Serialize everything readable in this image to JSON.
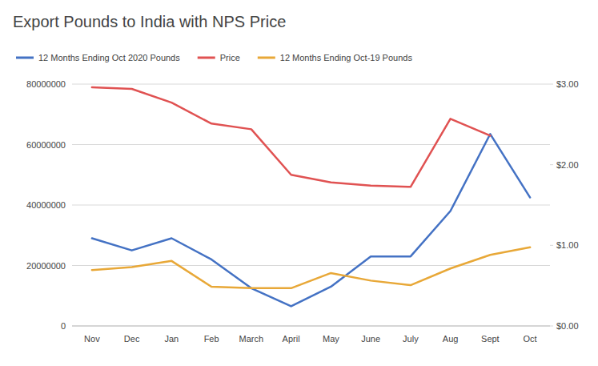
{
  "chart_data": {
    "type": "line",
    "title": "Export Pounds to India with NPS Price",
    "categories": [
      "Nov",
      "Dec",
      "Jan",
      "Feb",
      "March",
      "April",
      "May",
      "June",
      "July",
      "Aug",
      "Sept",
      "Oct"
    ],
    "series": [
      {
        "name": "12 Months Ending Oct 2020 Pounds",
        "color": "#4472C4",
        "values": [
          29000000,
          25000000,
          29000000,
          22000000,
          12500000,
          6500000,
          13000000,
          23000000,
          23000000,
          38000000,
          63500000,
          42500000
        ]
      },
      {
        "name": "Price",
        "color": "#E05252",
        "axis": "y2",
        "values": [
          2.96,
          2.94,
          2.77,
          2.51,
          2.44,
          1.875,
          1.78,
          1.74,
          1.725,
          2.57,
          2.36,
          null
        ]
      },
      {
        "name": "12 Months Ending Oct-19 Pounds",
        "color": "#E8A838",
        "values": [
          18500000,
          19500000,
          21500000,
          13000000,
          12500000,
          12500000,
          17500000,
          15000000,
          13500000,
          19000000,
          23500000,
          26000000
        ]
      }
    ],
    "ylim": [
      0,
      80000000
    ],
    "yticks": [
      0,
      20000000,
      40000000,
      60000000,
      80000000
    ],
    "y2lim": [
      0.0,
      3.0
    ],
    "y2ticks": [
      {
        "value": 0.0,
        "label": "$0.00"
      },
      {
        "value": 1.0,
        "label": "$1.00"
      },
      {
        "value": 2.0,
        "label": "$2.00"
      },
      {
        "value": 3.0,
        "label": "$3.00"
      }
    ],
    "grid": true,
    "legend": "top"
  }
}
